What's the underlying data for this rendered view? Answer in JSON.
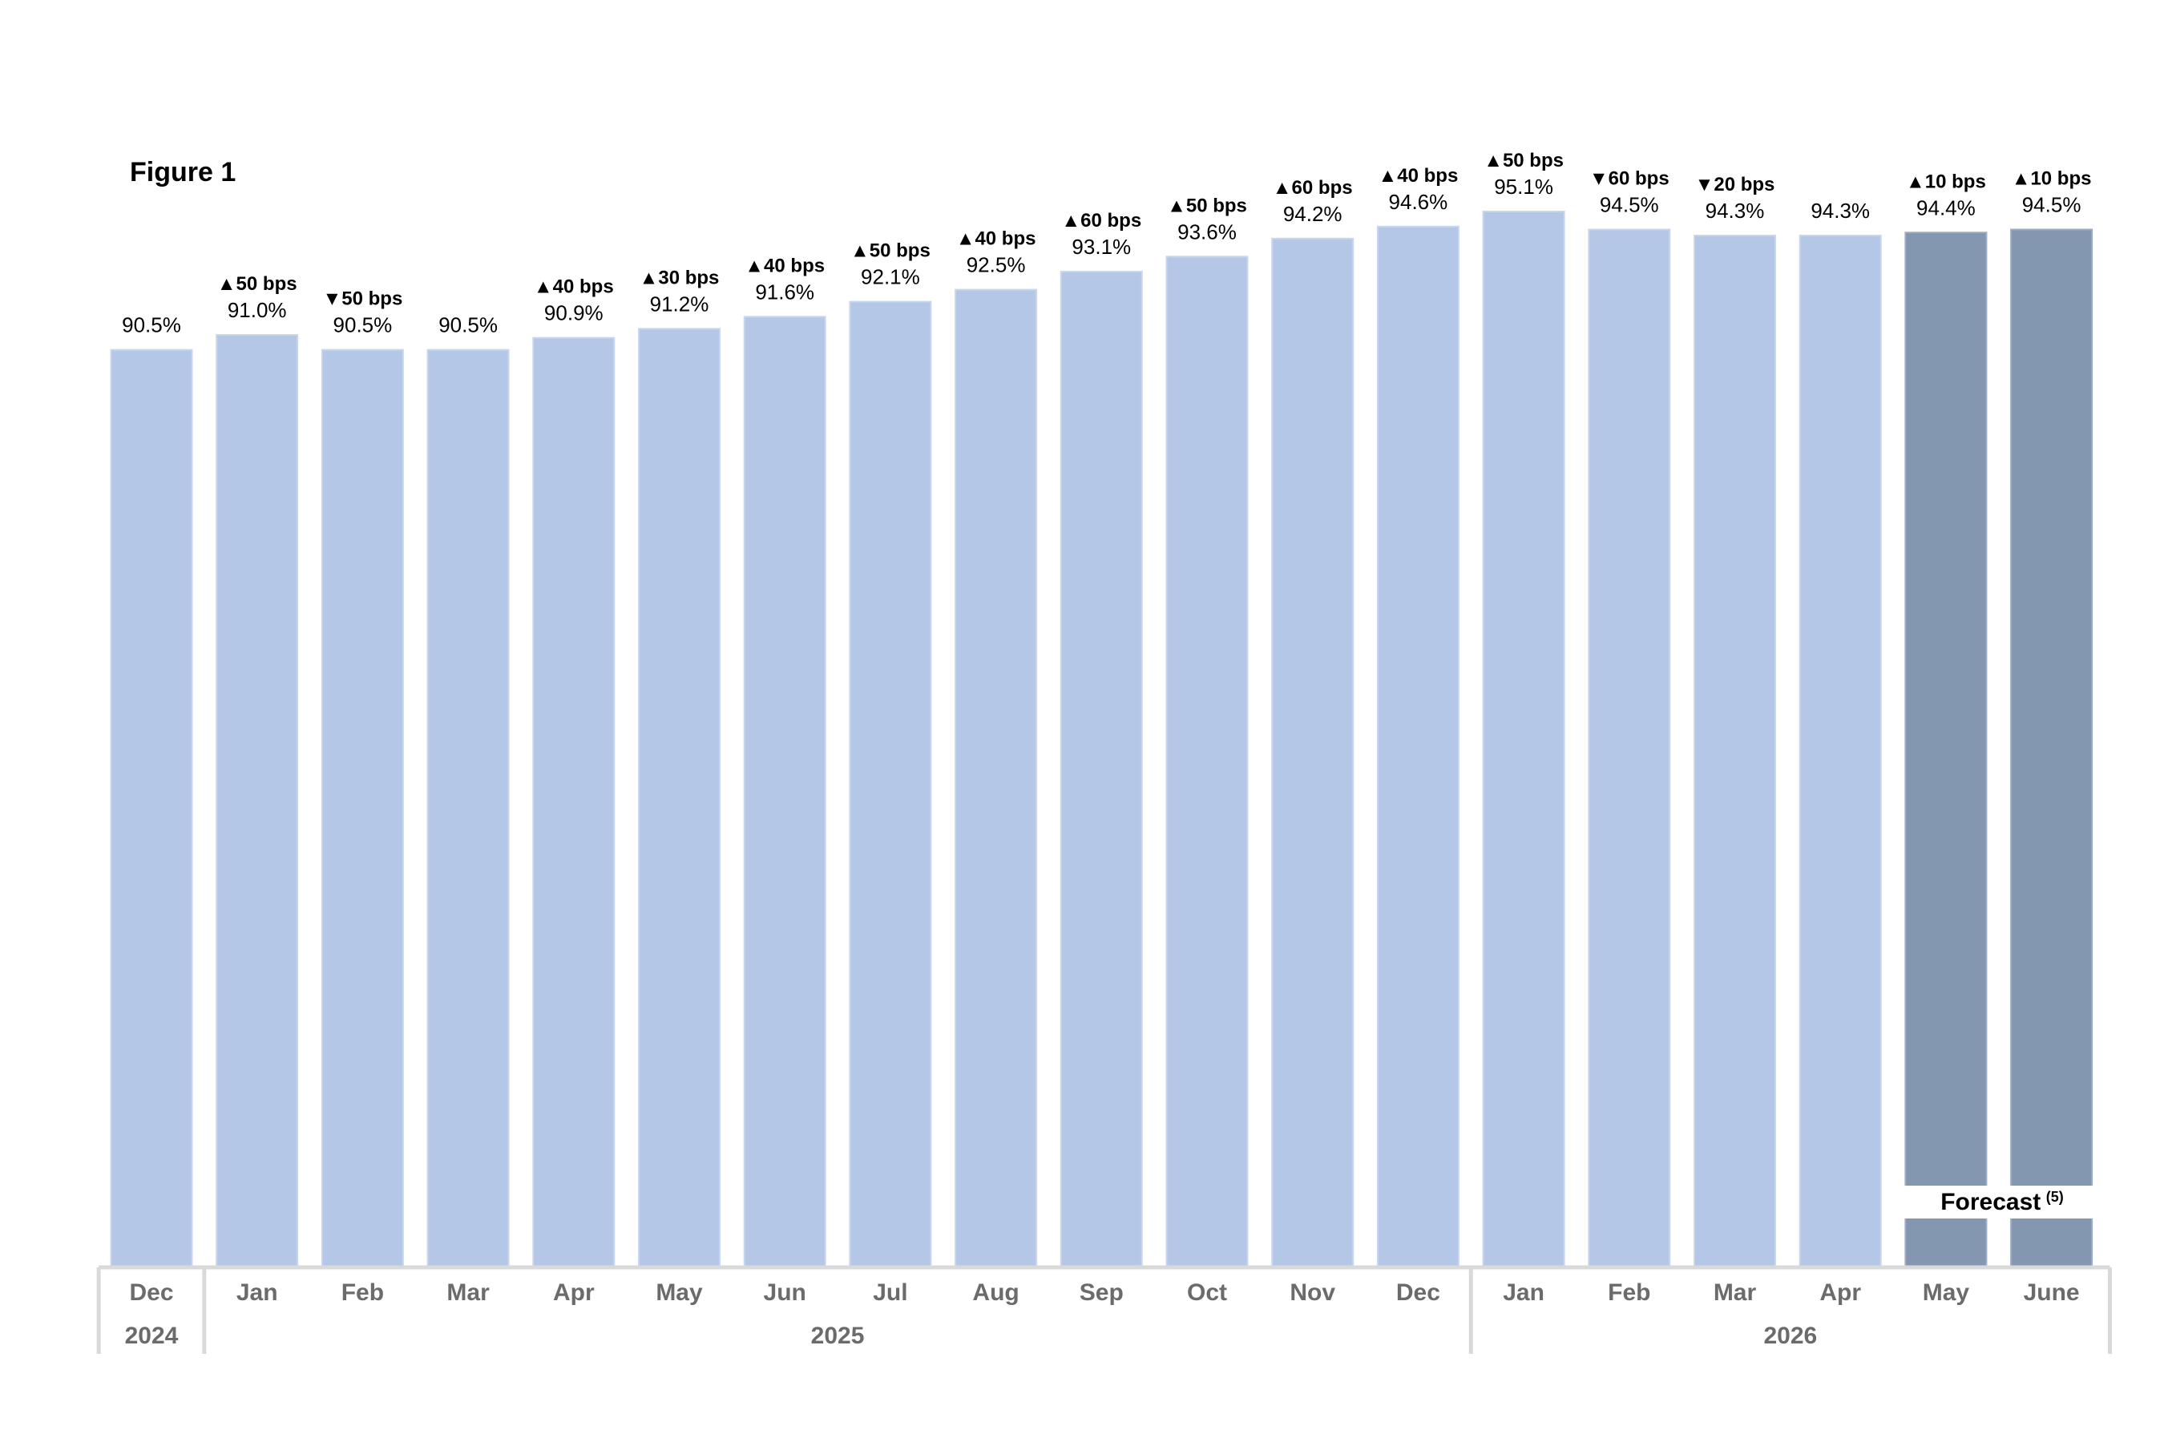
{
  "chart_data": {
    "type": "bar",
    "title": "Figure 1",
    "categories": [
      "Dec",
      "Jan",
      "Feb",
      "Mar",
      "Apr",
      "May",
      "Jun",
      "Jul",
      "Aug",
      "Sep",
      "Oct",
      "Nov",
      "Dec",
      "Jan",
      "Feb",
      "Mar",
      "Apr",
      "May",
      "June"
    ],
    "years": [
      {
        "label": "2024",
        "start": 0,
        "end": 0
      },
      {
        "label": "2025",
        "start": 1,
        "end": 12
      },
      {
        "label": "2026",
        "start": 13,
        "end": 18
      }
    ],
    "values": [
      90.5,
      91.0,
      90.5,
      90.5,
      90.9,
      91.2,
      91.6,
      92.1,
      92.5,
      93.1,
      93.6,
      94.2,
      94.6,
      95.1,
      94.5,
      94.3,
      94.3,
      94.4,
      94.5
    ],
    "value_labels": [
      "90.5%",
      "91.0%",
      "90.5%",
      "90.5%",
      "90.9%",
      "91.2%",
      "91.6%",
      "92.1%",
      "92.5%",
      "93.1%",
      "93.6%",
      "94.2%",
      "94.6%",
      "95.1%",
      "94.5%",
      "94.3%",
      "94.3%",
      "94.4%",
      "94.5%"
    ],
    "change_labels": [
      "",
      "▲50 bps",
      "▼50 bps",
      "",
      "▲40 bps",
      "▲30 bps",
      "▲40 bps",
      "▲50 bps",
      "▲40 bps",
      "▲60 bps",
      "▲50 bps",
      "▲60 bps",
      "▲40 bps",
      "▲50 bps",
      "▼60 bps",
      "▼20 bps",
      "",
      "▲10 bps",
      "▲10 bps"
    ],
    "forecast": [
      false,
      false,
      false,
      false,
      false,
      false,
      false,
      false,
      false,
      false,
      false,
      false,
      false,
      false,
      false,
      false,
      false,
      true,
      true
    ],
    "forecast_label": "Forecast",
    "forecast_note": "(5)",
    "ylim": [
      60.0,
      95.1
    ],
    "grid": false,
    "legend": "none",
    "colors": {
      "actual": "#b4c7e7",
      "forecast": "#8497b0",
      "axis": "#d9d9d9",
      "axis_text": "#6b6b6b"
    }
  }
}
